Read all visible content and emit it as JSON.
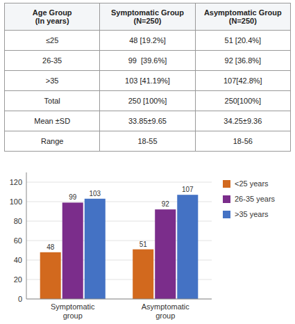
{
  "chart_data": [
    {
      "type": "table",
      "columns": [
        "Age Group\n(In years)",
        "Symptomatic Group\n(N=250)",
        "Asymptomatic Group\n(N=250)"
      ],
      "rows": [
        [
          "≤25",
          "48 [19.2%]",
          "51 [20.4%]"
        ],
        [
          "26-35",
          "99  [39.6%]",
          "92 [36.8%]"
        ],
        [
          ">35",
          "103 [41.19%]",
          "107[42.8%]"
        ],
        [
          "Total",
          "250 [100%]",
          "250[100%]"
        ],
        [
          "Mean ±SD",
          "33.85±9.65",
          "34.25±9.36"
        ],
        [
          "Range",
          "18-55",
          "18-56"
        ]
      ]
    },
    {
      "type": "bar",
      "categories": [
        "Symptomatic\ngroup",
        "Asymptomatic\ngroup"
      ],
      "series": [
        {
          "name": "<25 years",
          "color": "#D2691E",
          "values": [
            48,
            51
          ]
        },
        {
          "name": "26-35 years",
          "color": "#7B2D8B",
          "values": [
            99,
            92
          ]
        },
        {
          "name": ">35 years",
          "color": "#4472C4",
          "values": [
            103,
            107
          ]
        }
      ],
      "ylim": [
        0,
        130
      ],
      "yticks": [
        0,
        20,
        40,
        60,
        80,
        100,
        120
      ],
      "grid": true,
      "legend": "right",
      "data_labels": true
    }
  ]
}
